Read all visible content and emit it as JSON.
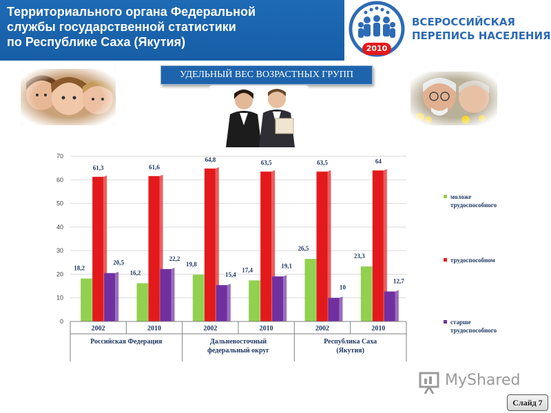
{
  "header": {
    "title": "Территориального органа Федеральной\nслужбы государственной статистики\nпо Республике Саха (Якутия)"
  },
  "logo": {
    "text": "ВСЕРОССИЙСКАЯ\nПЕРЕПИСЬ НАСЕЛЕНИЯ",
    "year": "2010"
  },
  "banner": {
    "title": "УДЕЛЬНЫЙ ВЕС ВОЗРАСТНЫХ ГРУПП"
  },
  "slide": {
    "label": "Слайд 7"
  },
  "watermark": {
    "text": "MyShared"
  },
  "colors": {
    "header_bg": "#1e6ab4",
    "young": "#92d050",
    "working": "#e31a1c",
    "older": "#7030a0"
  },
  "chart_data": {
    "type": "bar",
    "categories": [
      "2002",
      "2010",
      "2002",
      "2010",
      "2002",
      "2010"
    ],
    "groups": [
      "Российская Федерация",
      "Дальневосточный\nфедеральный округ",
      "Республика Саха\n(Якутия)"
    ],
    "series": [
      {
        "name": "моложе\nтрудоспособного",
        "values": [
          18.2,
          16.2,
          19.8,
          17.4,
          26.5,
          23.3
        ],
        "labels": [
          "18,2",
          "16,2",
          "19,8",
          "17,4",
          "26,5",
          "23,3"
        ]
      },
      {
        "name": "трудоспособном",
        "values": [
          61.3,
          61.6,
          64.8,
          63.5,
          63.5,
          64
        ],
        "labels": [
          "61,3",
          "61,6",
          "64,8",
          "63,5",
          "63,5",
          "64"
        ]
      },
      {
        "name": "старше\nтрудоспособного",
        "values": [
          20.5,
          22.2,
          15.4,
          19.1,
          10,
          12.7
        ],
        "labels": [
          "20,5",
          "22,2",
          "15,4",
          "19,1",
          "10",
          "12,7"
        ]
      }
    ],
    "yticks": [
      "0",
      "10",
      "20",
      "30",
      "40",
      "50",
      "60",
      "70"
    ],
    "ylim": [
      0,
      70
    ],
    "grid": true,
    "legend": "right"
  }
}
